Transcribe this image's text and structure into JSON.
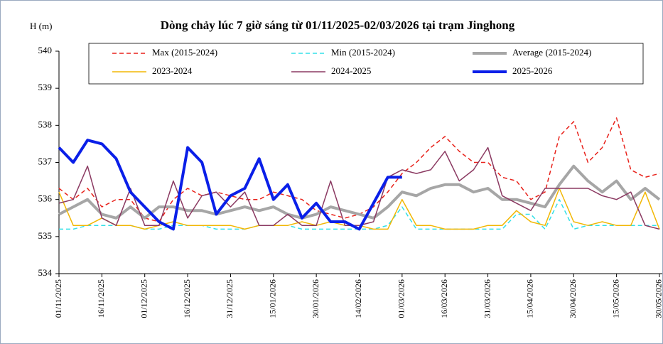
{
  "chart_data": {
    "type": "line",
    "title": "Dòng chảy lúc 7 giờ sáng từ 01/11/2025-02/03/2026 tại trạm Jinghong",
    "y_label": "H (m)",
    "x": [
      "01/11/2025",
      "06/11/2025",
      "11/11/2025",
      "16/11/2025",
      "21/11/2025",
      "26/11/2025",
      "01/12/2025",
      "06/12/2025",
      "11/12/2025",
      "16/12/2025",
      "21/12/2025",
      "26/12/2025",
      "31/12/2025",
      "05/01/2026",
      "10/01/2026",
      "15/01/2026",
      "20/01/2026",
      "25/01/2026",
      "30/01/2026",
      "04/02/2026",
      "09/02/2026",
      "14/02/2026",
      "19/02/2026",
      "24/02/2026",
      "01/03/2026",
      "06/03/2026",
      "11/03/2026",
      "16/03/2026",
      "21/03/2026",
      "26/03/2026",
      "31/03/2026",
      "05/04/2026",
      "10/04/2026",
      "15/04/2026",
      "20/04/2026",
      "25/04/2026",
      "30/04/2026",
      "05/05/2026",
      "10/05/2026",
      "15/05/2026",
      "20/05/2026",
      "25/05/2026",
      "30/05/2026"
    ],
    "xlim": [
      "01/11/2025",
      "31/05/2026"
    ],
    "xticks": [
      "01/11/2025",
      "16/11/2025",
      "01/12/2025",
      "16/12/2025",
      "31/12/2025",
      "15/01/2026",
      "30/01/2026",
      "14/02/2026",
      "01/03/2026",
      "16/03/2026",
      "31/03/2026",
      "15/04/2026",
      "30/04/2026",
      "15/05/2026",
      "30/05/2026"
    ],
    "ylim": [
      534,
      540
    ],
    "yticks": [
      534,
      535,
      536,
      537,
      538,
      539,
      540
    ],
    "legend": "top",
    "series": [
      {
        "name": "Max (2015-2024)",
        "color": "#e8221b",
        "line_style": "dashed",
        "line_width": 1.5,
        "values": [
          536.3,
          536.0,
          536.3,
          535.8,
          536.0,
          536.0,
          535.5,
          535.4,
          536.0,
          536.3,
          536.1,
          536.2,
          536.1,
          536.0,
          536.0,
          536.2,
          536.1,
          536.0,
          535.7,
          535.6,
          535.5,
          535.6,
          535.8,
          536.2,
          536.7,
          537.0,
          537.4,
          537.7,
          537.3,
          537.0,
          537.0,
          536.6,
          536.5,
          536.0,
          536.2,
          537.7,
          538.1,
          537.0,
          537.4,
          538.2,
          536.8,
          536.6,
          536.7
        ]
      },
      {
        "name": "Min (2015-2024)",
        "color": "#33e0e8",
        "line_style": "dashed",
        "line_width": 1.5,
        "values": [
          535.2,
          535.2,
          535.3,
          535.3,
          535.3,
          535.3,
          535.2,
          535.2,
          535.3,
          535.3,
          535.3,
          535.2,
          535.2,
          535.2,
          535.3,
          535.3,
          535.3,
          535.2,
          535.2,
          535.2,
          535.2,
          535.2,
          535.2,
          535.3,
          535.8,
          535.2,
          535.2,
          535.2,
          535.2,
          535.2,
          535.2,
          535.2,
          535.6,
          535.6,
          535.2,
          536.0,
          535.2,
          535.3,
          535.3,
          535.3,
          535.3,
          535.3,
          535.3
        ]
      },
      {
        "name": "Average (2015-2024)",
        "color": "#a6a6a6",
        "line_style": "solid",
        "line_width": 4,
        "values": [
          535.6,
          535.8,
          536.0,
          535.6,
          535.5,
          535.8,
          535.5,
          535.8,
          535.8,
          535.7,
          535.7,
          535.6,
          535.7,
          535.8,
          535.7,
          535.8,
          535.6,
          535.5,
          535.6,
          535.8,
          535.7,
          535.6,
          535.5,
          535.8,
          536.2,
          536.1,
          536.3,
          536.4,
          536.4,
          536.2,
          536.3,
          536.0,
          536.0,
          535.9,
          535.8,
          536.4,
          536.9,
          536.5,
          536.2,
          536.5,
          536.0,
          536.3,
          536.0
        ]
      },
      {
        "name": "2023-2024",
        "color": "#f2b705",
        "line_style": "solid",
        "line_width": 1.5,
        "values": [
          536.2,
          535.3,
          535.3,
          535.5,
          535.3,
          535.3,
          535.2,
          535.3,
          535.4,
          535.3,
          535.3,
          535.3,
          535.3,
          535.2,
          535.3,
          535.3,
          535.3,
          535.4,
          535.3,
          535.4,
          535.3,
          535.3,
          535.2,
          535.2,
          536.0,
          535.3,
          535.3,
          535.2,
          535.2,
          535.2,
          535.3,
          535.3,
          535.7,
          535.4,
          535.3,
          536.3,
          535.4,
          535.3,
          535.4,
          535.3,
          535.3,
          536.2,
          535.2
        ]
      },
      {
        "name": "2024-2025",
        "color": "#8b3a62",
        "line_style": "solid",
        "line_width": 1.5,
        "values": [
          535.9,
          536.0,
          536.9,
          535.5,
          535.3,
          536.3,
          535.3,
          535.3,
          536.5,
          535.5,
          536.1,
          536.2,
          535.8,
          536.2,
          535.3,
          535.3,
          535.6,
          535.3,
          535.3,
          536.5,
          535.3,
          535.3,
          535.4,
          536.6,
          536.8,
          536.7,
          536.8,
          537.3,
          536.5,
          536.8,
          537.4,
          536.1,
          535.9,
          535.7,
          536.3,
          536.3,
          536.3,
          536.3,
          536.1,
          536.0,
          536.2,
          535.3,
          535.2
        ]
      },
      {
        "name": "2025-2026",
        "color": "#0a1fe8",
        "line_style": "solid",
        "line_width": 4,
        "values": [
          537.4,
          537.0,
          537.6,
          537.5,
          537.1,
          536.2,
          535.8,
          535.4,
          535.2,
          537.4,
          537.0,
          535.6,
          536.1,
          536.3,
          537.1,
          536.0,
          536.4,
          535.5,
          535.9,
          535.4,
          535.4,
          535.2,
          535.9,
          536.6,
          536.6,
          null,
          null,
          null,
          null,
          null,
          null,
          null,
          null,
          null,
          null,
          null,
          null,
          null,
          null,
          null,
          null,
          null,
          null
        ]
      }
    ]
  }
}
